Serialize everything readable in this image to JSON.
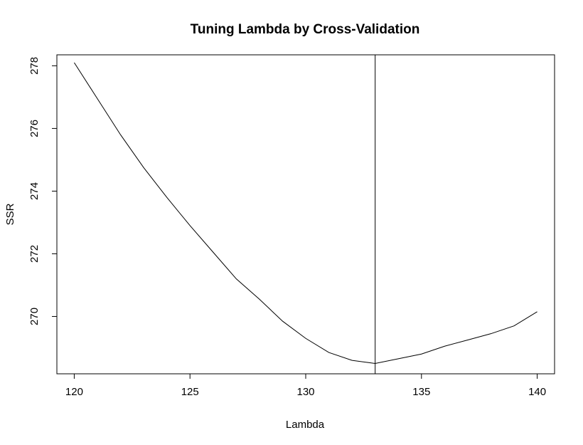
{
  "chart_data": {
    "type": "line",
    "title": "Tuning Lambda by Cross-Validation",
    "xlabel": "Lambda",
    "ylabel": "SSR",
    "xlim": [
      119.25,
      140.75
    ],
    "ylim": [
      268.17,
      278.35
    ],
    "x_ticks": [
      "120",
      "125",
      "130",
      "135",
      "140"
    ],
    "y_ticks": [
      "270",
      "272",
      "274",
      "276",
      "278"
    ],
    "grid": false,
    "legend": "none",
    "series": [
      {
        "x": [
          120,
          121,
          122,
          123,
          124,
          125,
          126,
          127,
          128,
          129,
          130,
          131,
          132,
          133,
          134,
          135,
          136,
          137,
          138,
          139,
          140
        ],
        "y": [
          278.1,
          276.95,
          275.8,
          274.75,
          273.8,
          272.9,
          272.05,
          271.2,
          270.55,
          269.85,
          269.3,
          268.85,
          268.6,
          268.5,
          268.65,
          268.8,
          269.05,
          269.25,
          269.45,
          269.7,
          270.15
        ]
      }
    ],
    "vline": {
      "x": 133
    },
    "line_color": "#000000"
  }
}
